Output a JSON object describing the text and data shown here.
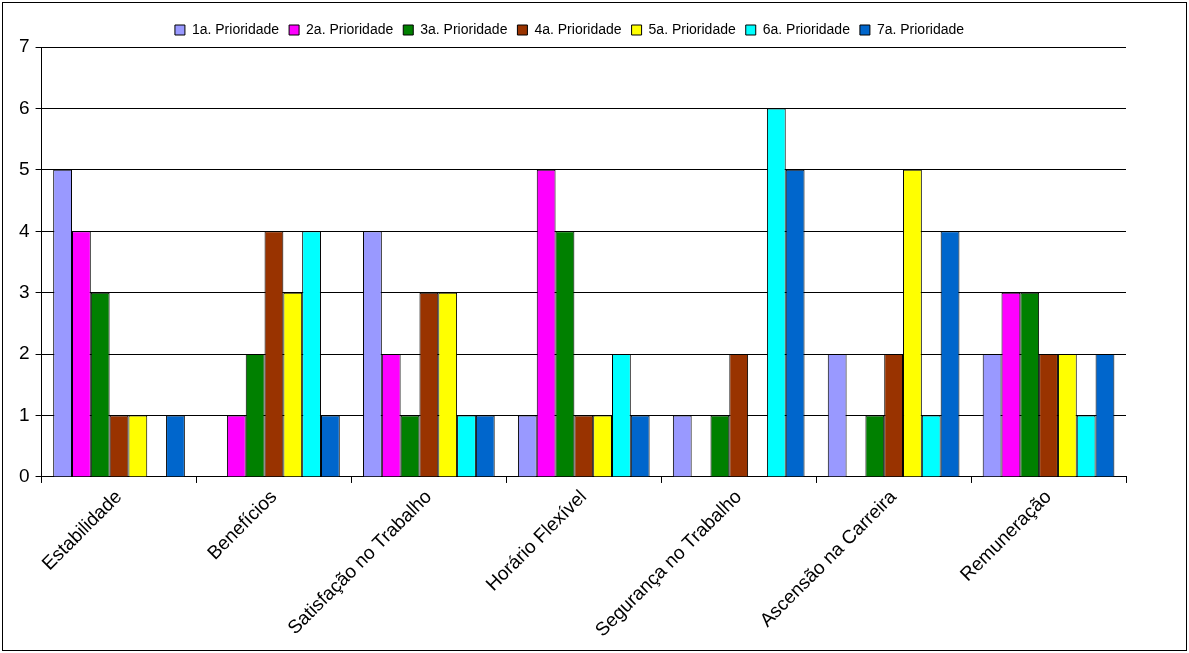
{
  "chart_data": {
    "type": "bar",
    "categories": [
      "Estabilidade",
      "Benefícios",
      "Satisfação no Trabalho",
      "Horário Flexível",
      "Segurança no Trabalho",
      "Ascensão na Carreira",
      "Remuneração"
    ],
    "series": [
      {
        "name": "1a. Prioridade",
        "color": "#9999ff",
        "values": [
          5,
          0,
          4,
          1,
          1,
          2,
          2
        ]
      },
      {
        "name": "2a. Prioridade",
        "color": "#ff00ff",
        "values": [
          4,
          1,
          2,
          5,
          0,
          0,
          3
        ]
      },
      {
        "name": "3a. Prioridade",
        "color": "#008000",
        "values": [
          3,
          2,
          1,
          4,
          1,
          1,
          3
        ]
      },
      {
        "name": "4a. Prioridade",
        "color": "#993300",
        "values": [
          1,
          4,
          3,
          1,
          2,
          2,
          2
        ]
      },
      {
        "name": "5a. Prioridade",
        "color": "#ffff00",
        "values": [
          1,
          3,
          3,
          1,
          0,
          5,
          2
        ]
      },
      {
        "name": "6a. Prioridade",
        "color": "#00ffff",
        "values": [
          0,
          4,
          1,
          2,
          6,
          1,
          1
        ]
      },
      {
        "name": "7a. Prioridade",
        "color": "#0066cc",
        "values": [
          1,
          1,
          1,
          1,
          5,
          4,
          2
        ]
      }
    ],
    "ylim": [
      0,
      7
    ],
    "yticks": [
      0,
      1,
      2,
      3,
      4,
      5,
      6,
      7
    ],
    "grid": "y",
    "legend": "top"
  }
}
